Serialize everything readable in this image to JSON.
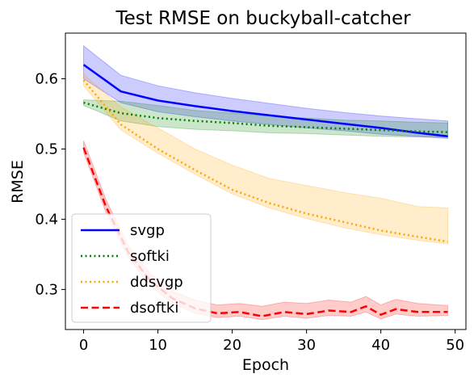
{
  "chart_data": {
    "type": "line",
    "title": "Test RMSE on buckyball-catcher",
    "xlabel": "Epoch",
    "ylabel": "RMSE",
    "xlim": [
      -2.45,
      51.45
    ],
    "ylim": [
      0.243,
      0.665
    ],
    "xticks": [
      0,
      10,
      20,
      30,
      40,
      50
    ],
    "yticks": [
      0.3,
      0.4,
      0.5,
      0.6
    ],
    "legend": "lower-left",
    "grid": false,
    "series": [
      {
        "name": "svgp",
        "color": "#0000ff",
        "dash": "solid",
        "x": [
          0,
          5,
          10,
          15,
          20,
          25,
          30,
          35,
          40,
          45,
          49
        ],
        "y": [
          0.62,
          0.582,
          0.569,
          0.561,
          0.554,
          0.548,
          0.542,
          0.536,
          0.53,
          0.523,
          0.518
        ],
        "band_upper": [
          0.647,
          0.605,
          0.59,
          0.58,
          0.572,
          0.565,
          0.558,
          0.552,
          0.547,
          0.543,
          0.54
        ],
        "band_lower": [
          0.6,
          0.566,
          0.553,
          0.546,
          0.54,
          0.535,
          0.53,
          0.526,
          0.521,
          0.518,
          0.515
        ]
      },
      {
        "name": "softki",
        "color": "#008000",
        "dash": "dotted",
        "x": [
          0,
          5,
          10,
          15,
          20,
          25,
          30,
          35,
          40,
          45,
          49
        ],
        "y": [
          0.566,
          0.551,
          0.544,
          0.54,
          0.537,
          0.533,
          0.531,
          0.529,
          0.527,
          0.525,
          0.524
        ],
        "band_upper": [
          0.57,
          0.568,
          0.562,
          0.555,
          0.551,
          0.547,
          0.544,
          0.541,
          0.54,
          0.538,
          0.537
        ],
        "band_lower": [
          0.562,
          0.54,
          0.532,
          0.528,
          0.526,
          0.523,
          0.522,
          0.52,
          0.518,
          0.517,
          0.517
        ]
      },
      {
        "name": "ddsvgp",
        "color": "#ffa500",
        "dash": "dotted",
        "x": [
          0,
          5,
          10,
          15,
          20,
          25,
          30,
          35,
          40,
          45,
          49
        ],
        "y": [
          0.598,
          0.535,
          0.5,
          0.47,
          0.442,
          0.423,
          0.408,
          0.396,
          0.384,
          0.375,
          0.368
        ],
        "band_upper": [
          0.607,
          0.56,
          0.53,
          0.5,
          0.477,
          0.458,
          0.448,
          0.438,
          0.43,
          0.418,
          0.416
        ],
        "band_lower": [
          0.59,
          0.527,
          0.494,
          0.464,
          0.436,
          0.416,
          0.401,
          0.388,
          0.378,
          0.37,
          0.365
        ]
      },
      {
        "name": "dsoftki",
        "color": "#ff0000",
        "dash": "dashed",
        "x": [
          0,
          3,
          6,
          9,
          12,
          15,
          18,
          21,
          24,
          27,
          30,
          33,
          36,
          38,
          40,
          42,
          45,
          49
        ],
        "y": [
          0.502,
          0.418,
          0.353,
          0.312,
          0.287,
          0.273,
          0.266,
          0.268,
          0.262,
          0.268,
          0.265,
          0.27,
          0.268,
          0.276,
          0.264,
          0.272,
          0.268,
          0.268
        ],
        "band_upper": [
          0.512,
          0.428,
          0.362,
          0.322,
          0.297,
          0.285,
          0.278,
          0.28,
          0.276,
          0.282,
          0.28,
          0.285,
          0.282,
          0.29,
          0.278,
          0.286,
          0.28,
          0.277
        ],
        "band_lower": [
          0.495,
          0.41,
          0.345,
          0.305,
          0.28,
          0.266,
          0.26,
          0.262,
          0.257,
          0.262,
          0.259,
          0.263,
          0.262,
          0.268,
          0.258,
          0.265,
          0.262,
          0.263
        ]
      }
    ]
  }
}
